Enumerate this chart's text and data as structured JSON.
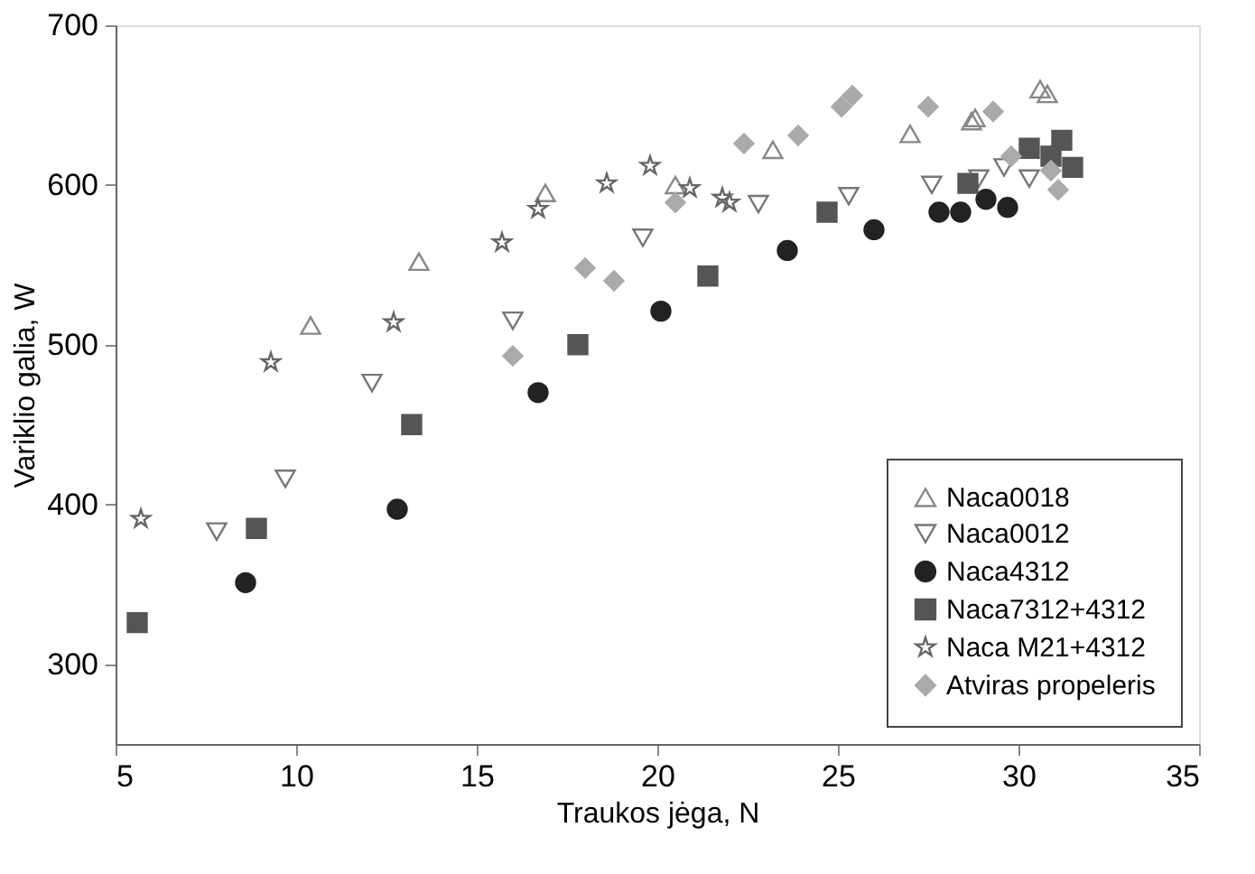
{
  "chart_data": {
    "type": "scatter",
    "xlabel": "Traukos jėga, N",
    "ylabel": "Variklio galia, W",
    "xlim": [
      5,
      35
    ],
    "ylim": [
      250,
      700
    ],
    "xticks": [
      5,
      10,
      15,
      20,
      25,
      30,
      35
    ],
    "yticks": [
      300,
      400,
      500,
      600,
      700
    ],
    "grid": false,
    "legend": "bottom right",
    "series": [
      {
        "name": "Naca0018",
        "color": "#888888",
        "marker": "triangle",
        "x": [
          10.4,
          13.4,
          16.9,
          20.5,
          23.2,
          27.0,
          28.7,
          28.8,
          30.6,
          30.8
        ],
        "values": [
          512,
          552,
          595,
          600,
          622,
          632,
          640,
          642,
          660,
          657
        ]
      },
      {
        "name": "Naca0012",
        "color": "#777777",
        "marker": "triangle-down",
        "x": [
          7.8,
          9.7,
          12.1,
          16.0,
          19.6,
          22.8,
          25.3,
          27.6,
          28.9,
          29.6,
          30.3
        ],
        "values": [
          383,
          416,
          476,
          515,
          567,
          588,
          593,
          600,
          604,
          611,
          604
        ]
      },
      {
        "name": "Naca4312",
        "color": "#222222",
        "marker": "circle",
        "x": [
          8.6,
          12.8,
          16.7,
          20.1,
          23.6,
          26.0,
          27.8,
          28.4,
          29.1,
          29.7
        ],
        "values": [
          351,
          397,
          470,
          521,
          559,
          572,
          583,
          583,
          591,
          586
        ]
      },
      {
        "name": "Naca7312+4312",
        "color": "#555555",
        "marker": "square",
        "x": [
          5.6,
          8.9,
          13.2,
          17.8,
          21.4,
          24.7,
          28.6,
          30.3,
          30.9,
          31.2,
          31.5
        ],
        "values": [
          326,
          385,
          450,
          500,
          543,
          583,
          601,
          623,
          618,
          628,
          611
        ]
      },
      {
        "name": "Naca M21+4312",
        "color": "#666666",
        "marker": "star",
        "x": [
          5.7,
          9.3,
          12.7,
          15.7,
          16.7,
          18.6,
          19.8,
          20.9,
          21.8,
          22.0
        ],
        "values": [
          391,
          489,
          514,
          564,
          585,
          601,
          612,
          598,
          592,
          589
        ]
      },
      {
        "name": "Atviras propeleris",
        "color": "#aaaaaa",
        "marker": "diamond",
        "x": [
          16.0,
          18.0,
          18.8,
          20.5,
          22.4,
          23.9,
          25.1,
          25.4,
          27.5,
          29.3,
          29.8,
          30.9,
          31.1
        ],
        "values": [
          493,
          548,
          540,
          589,
          626,
          631,
          649,
          656,
          649,
          646,
          618,
          609,
          597
        ]
      }
    ]
  }
}
